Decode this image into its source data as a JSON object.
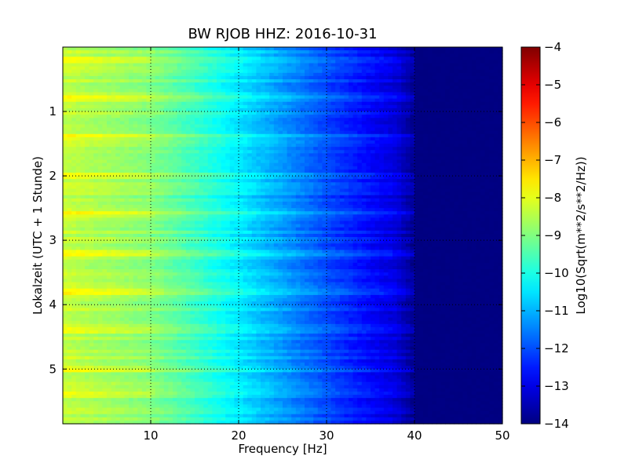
{
  "chart_data": {
    "type": "heatmap",
    "title": "BW RJOB HHZ: 2016-10-31",
    "xlabel": "Frequency [Hz]",
    "ylabel": "Lokalzeit (UTC + 1 Stunde)",
    "xlim": [
      0,
      50
    ],
    "ylim": [
      5.85,
      0.0
    ],
    "x_ticks": [
      10,
      20,
      30,
      40,
      50
    ],
    "x_tick_labels": [
      "10",
      "20",
      "30",
      "40",
      "50"
    ],
    "y_ticks": [
      1,
      2,
      3,
      4,
      5
    ],
    "y_tick_labels": [
      "1",
      "2",
      "3",
      "4",
      "5"
    ],
    "grid": true,
    "colormap": "jet",
    "colorbar": {
      "label": "Log10(Sqrt(m**2/s**2/Hz))",
      "range": [
        -14,
        -4
      ],
      "ticks": [
        -4,
        -5,
        -6,
        -7,
        -8,
        -9,
        -10,
        -11,
        -12,
        -13,
        -14
      ],
      "tick_labels": [
        "−4",
        "−5",
        "−6",
        "−7",
        "−8",
        "−9",
        "−10",
        "−11",
        "−12",
        "−13",
        "−14"
      ]
    },
    "spectrum_profile": {
      "frequency_hz": [
        0,
        5,
        10,
        15,
        20,
        25,
        30,
        35,
        38,
        40,
        42,
        50
      ],
      "log10_amplitude": [
        -8.3,
        -8.6,
        -8.9,
        -9.6,
        -10.4,
        -11.2,
        -12.0,
        -12.7,
        -13.1,
        -13.8,
        -14.0,
        -14.0
      ]
    },
    "noise_bursts_hours": [
      0.2,
      0.8,
      1.4,
      2.0,
      2.6,
      3.2,
      3.8,
      4.4,
      5.0,
      5.4
    ]
  }
}
